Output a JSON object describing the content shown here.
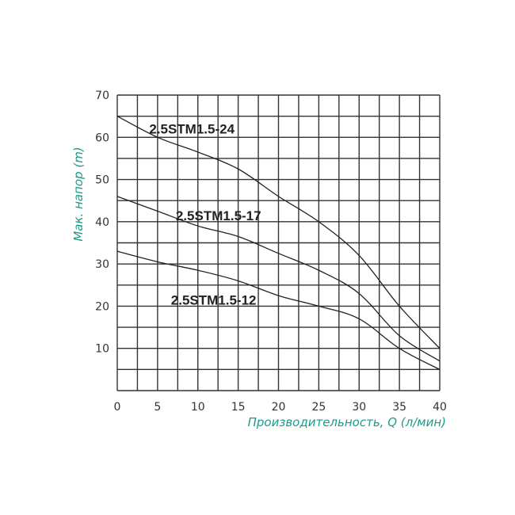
{
  "chart_data": {
    "type": "line",
    "title": "",
    "xlabel": "Производительность, Q (л/мин)",
    "ylabel": "Мак. напор (m)",
    "xlim": [
      0,
      40
    ],
    "ylim": [
      0,
      70
    ],
    "x_ticks": [
      0,
      5,
      10,
      15,
      20,
      25,
      30,
      35,
      40
    ],
    "y_ticks": [
      10,
      20,
      30,
      40,
      50,
      60,
      70
    ],
    "grid": true,
    "grid_x_step": 2.5,
    "grid_y_step": 5,
    "legend_position": "inline labels",
    "x": [
      0,
      5,
      10,
      15,
      20,
      25,
      30,
      35,
      40
    ],
    "series": [
      {
        "name": "2.5STM1.5-24",
        "values": [
          65,
          60,
          56.5,
          52.5,
          46,
          40,
          32,
          20,
          10
        ],
        "label_pos": [
          7.5,
          62
        ]
      },
      {
        "name": "2.5STM1.5-17",
        "values": [
          46,
          42.5,
          39,
          36.5,
          32.5,
          28.5,
          23,
          13,
          7
        ],
        "label_pos": [
          10.8,
          41.5
        ]
      },
      {
        "name": "2.5STM1.5-12",
        "values": [
          33,
          30.5,
          28.5,
          26,
          22.5,
          20,
          17,
          10,
          5
        ],
        "label_pos": [
          10.2,
          21.5
        ]
      }
    ]
  },
  "colors": {
    "axis_label": "#1a9a8a",
    "grid": "#333333",
    "curve": "#222222"
  }
}
